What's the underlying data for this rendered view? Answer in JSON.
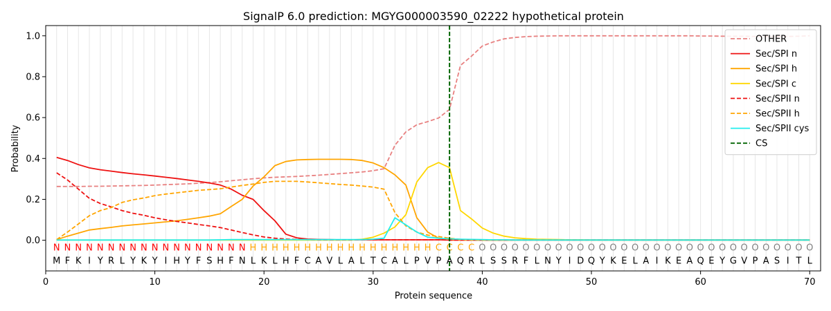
{
  "chart_data": {
    "type": "line",
    "title": "SignalP 6.0 prediction: MGYG000003590_02222 hypothetical protein",
    "xlabel": "Protein sequence",
    "ylabel": "Probability",
    "xlim": [
      0,
      71
    ],
    "ylim": [
      -0.15,
      1.05
    ],
    "x_ticks": [
      0,
      10,
      20,
      30,
      40,
      50,
      60,
      70
    ],
    "y_ticks": [
      0.0,
      0.2,
      0.4,
      0.6,
      0.8,
      1.0
    ],
    "x_tick_labels": [
      "0",
      "10",
      "20",
      "30",
      "40",
      "50",
      "60",
      "70"
    ],
    "y_tick_labels": [
      "0.0",
      "0.2",
      "0.4",
      "0.6",
      "0.8",
      "1.0"
    ],
    "grid": "vertical lines at each residue",
    "legend_position": "top-right",
    "sequence": "MFKIYRLYKYIHYFSHFNLKLHFCAVLALTCALPVPAQRLSSRFLNYIDQYKELAIKEAQEYGVPASITL",
    "labels": "NNNNNNNNNNNNNNNNNNHHHHHHHHHHHHHHHHHCCCCOOOOOOOOOOOOOOOOOOOOOOOOOOOOOOOOO",
    "label_colors": {
      "N": "#ff0000",
      "H": "#ffa500",
      "C": "#ffa500",
      "O": "#808080"
    },
    "cleavage_site": 37,
    "series": [
      {
        "name": "OTHER",
        "color": "#e88080",
        "dash": "dashed",
        "values": [
          0.263,
          0.263,
          0.263,
          0.264,
          0.264,
          0.265,
          0.266,
          0.267,
          0.268,
          0.27,
          0.272,
          0.274,
          0.276,
          0.279,
          0.282,
          0.286,
          0.291,
          0.296,
          0.301,
          0.305,
          0.308,
          0.31,
          0.312,
          0.315,
          0.318,
          0.322,
          0.326,
          0.33,
          0.334,
          0.34,
          0.35,
          0.465,
          0.53,
          0.565,
          0.58,
          0.598,
          0.64,
          0.855,
          0.9,
          0.95,
          0.97,
          0.985,
          0.992,
          0.996,
          0.998,
          0.999,
          1.0,
          1.0,
          1.0,
          1.0,
          1.0,
          1.0,
          1.0,
          1.0,
          1.0,
          1.0,
          1.0,
          1.0,
          1.0,
          0.999,
          0.999,
          0.998,
          0.998,
          0.998,
          0.997,
          0.997,
          0.997,
          0.997,
          0.998,
          1.0
        ]
      },
      {
        "name": "Sec/SPI n",
        "color": "#ee1111",
        "dash": "solid",
        "values": [
          0.405,
          0.39,
          0.37,
          0.354,
          0.345,
          0.338,
          0.331,
          0.325,
          0.32,
          0.314,
          0.308,
          0.302,
          0.295,
          0.288,
          0.28,
          0.27,
          0.25,
          0.22,
          0.2,
          0.145,
          0.095,
          0.03,
          0.012,
          0.006,
          0.004,
          0.003,
          0.002,
          0.002,
          0.002,
          0.002,
          0.002,
          0.002,
          0.002,
          0.002,
          0.002,
          0.002,
          0.001,
          0.001,
          0.001,
          0.001,
          0.001,
          0.001,
          0.001,
          0.001,
          0.001,
          0.001,
          0.001,
          0.001,
          0.001,
          0.001,
          0.001,
          0.001,
          0.001,
          0.001,
          0.001,
          0.001,
          0.001,
          0.001,
          0.001,
          0.001,
          0.001,
          0.001,
          0.001,
          0.001,
          0.001,
          0.001,
          0.001,
          0.001,
          0.001,
          0.001
        ]
      },
      {
        "name": "Sec/SPI h",
        "color": "#ffa500",
        "dash": "solid",
        "values": [
          0.003,
          0.02,
          0.035,
          0.05,
          0.057,
          0.063,
          0.07,
          0.075,
          0.08,
          0.085,
          0.09,
          0.095,
          0.102,
          0.11,
          0.118,
          0.13,
          0.165,
          0.2,
          0.265,
          0.31,
          0.365,
          0.385,
          0.393,
          0.395,
          0.396,
          0.396,
          0.396,
          0.395,
          0.39,
          0.378,
          0.355,
          0.32,
          0.27,
          0.11,
          0.04,
          0.01,
          0.004,
          0.002,
          0.001,
          0.001,
          0.001,
          0.001,
          0.001,
          0.001,
          0.001,
          0.001,
          0.001,
          0.001,
          0.001,
          0.001,
          0.001,
          0.001,
          0.001,
          0.001,
          0.001,
          0.001,
          0.001,
          0.001,
          0.001,
          0.001,
          0.001,
          0.001,
          0.001,
          0.001,
          0.001,
          0.001,
          0.001,
          0.001,
          0.001,
          0.001
        ]
      },
      {
        "name": "Sec/SPI c",
        "color": "#ffd700",
        "dash": "solid",
        "values": [
          0.001,
          0.001,
          0.001,
          0.001,
          0.001,
          0.001,
          0.001,
          0.001,
          0.001,
          0.001,
          0.001,
          0.001,
          0.001,
          0.001,
          0.001,
          0.001,
          0.001,
          0.001,
          0.001,
          0.001,
          0.001,
          0.001,
          0.001,
          0.001,
          0.001,
          0.001,
          0.001,
          0.001,
          0.005,
          0.015,
          0.035,
          0.065,
          0.125,
          0.285,
          0.355,
          0.38,
          0.355,
          0.145,
          0.105,
          0.06,
          0.035,
          0.02,
          0.012,
          0.008,
          0.005,
          0.004,
          0.003,
          0.002,
          0.002,
          0.001,
          0.001,
          0.001,
          0.001,
          0.001,
          0.001,
          0.001,
          0.001,
          0.001,
          0.001,
          0.001,
          0.001,
          0.001,
          0.001,
          0.001,
          0.001,
          0.001,
          0.001,
          0.001,
          0.001,
          0.001
        ]
      },
      {
        "name": "Sec/SPII n",
        "color": "#ee1111",
        "dash": "dashed",
        "values": [
          0.33,
          0.295,
          0.25,
          0.205,
          0.18,
          0.163,
          0.145,
          0.132,
          0.122,
          0.11,
          0.1,
          0.092,
          0.085,
          0.077,
          0.07,
          0.062,
          0.05,
          0.038,
          0.026,
          0.016,
          0.01,
          0.006,
          0.004,
          0.003,
          0.002,
          0.002,
          0.002,
          0.002,
          0.002,
          0.002,
          0.002,
          0.002,
          0.002,
          0.002,
          0.002,
          0.002,
          0.001,
          0.001,
          0.001,
          0.001,
          0.001,
          0.001,
          0.001,
          0.001,
          0.001,
          0.001,
          0.001,
          0.001,
          0.001,
          0.001,
          0.001,
          0.001,
          0.001,
          0.001,
          0.001,
          0.001,
          0.001,
          0.001,
          0.001,
          0.001,
          0.001,
          0.001,
          0.001,
          0.001,
          0.001,
          0.001,
          0.001,
          0.001,
          0.001,
          0.001
        ]
      },
      {
        "name": "Sec/SPII h",
        "color": "#ffa500",
        "dash": "dashed",
        "values": [
          0.003,
          0.04,
          0.08,
          0.12,
          0.145,
          0.16,
          0.185,
          0.198,
          0.207,
          0.218,
          0.226,
          0.232,
          0.238,
          0.244,
          0.248,
          0.252,
          0.26,
          0.268,
          0.275,
          0.283,
          0.288,
          0.288,
          0.288,
          0.285,
          0.281,
          0.277,
          0.273,
          0.27,
          0.265,
          0.26,
          0.25,
          0.135,
          0.07,
          0.04,
          0.025,
          0.018,
          0.01,
          0.004,
          0.002,
          0.001,
          0.001,
          0.001,
          0.001,
          0.001,
          0.001,
          0.001,
          0.001,
          0.001,
          0.001,
          0.001,
          0.001,
          0.001,
          0.001,
          0.001,
          0.001,
          0.001,
          0.001,
          0.001,
          0.001,
          0.001,
          0.001,
          0.001,
          0.001,
          0.001,
          0.001,
          0.001,
          0.001,
          0.001,
          0.001,
          0.001
        ]
      },
      {
        "name": "Sec/SPII cys",
        "color": "#22eeee",
        "dash": "solid",
        "values": [
          0.001,
          0.001,
          0.001,
          0.001,
          0.001,
          0.001,
          0.001,
          0.001,
          0.001,
          0.001,
          0.001,
          0.001,
          0.001,
          0.001,
          0.001,
          0.002,
          0.003,
          0.003,
          0.003,
          0.003,
          0.003,
          0.003,
          0.003,
          0.003,
          0.003,
          0.003,
          0.003,
          0.003,
          0.003,
          0.005,
          0.01,
          0.11,
          0.075,
          0.04,
          0.015,
          0.01,
          0.007,
          0.005,
          0.004,
          0.003,
          0.002,
          0.002,
          0.001,
          0.001,
          0.001,
          0.001,
          0.001,
          0.001,
          0.001,
          0.001,
          0.001,
          0.001,
          0.001,
          0.001,
          0.001,
          0.001,
          0.001,
          0.001,
          0.001,
          0.001,
          0.001,
          0.001,
          0.001,
          0.001,
          0.001,
          0.001,
          0.001,
          0.001,
          0.001,
          0.001
        ]
      },
      {
        "name": "CS",
        "color": "#006400",
        "dash": "dashed",
        "vertical_at": 37
      }
    ]
  }
}
